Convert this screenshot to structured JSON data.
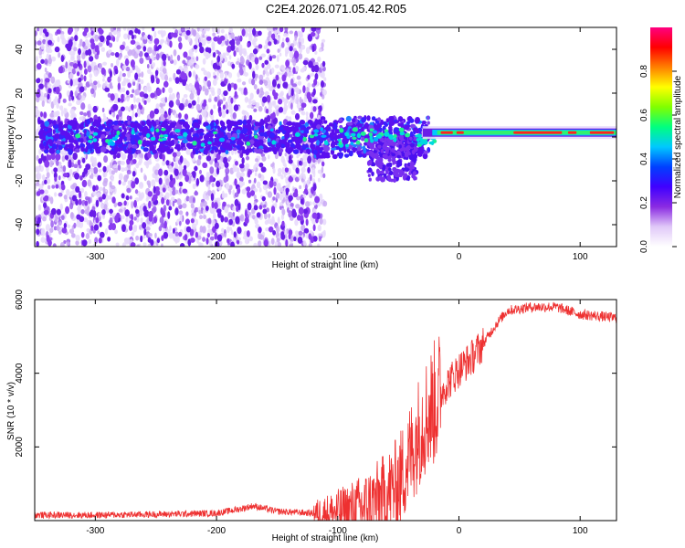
{
  "chart_data": [
    {
      "type": "heatmap",
      "title": "C2E4.2026.071.05.42.R05",
      "xlabel": "Height of straight line (km)",
      "ylabel": "Frequency (Hz)",
      "xlim": [
        -350,
        130
      ],
      "ylim": [
        -50,
        50
      ],
      "xticks": [
        -300,
        -200,
        -100,
        0,
        100
      ],
      "xtick_labels": [
        "-300",
        "-200",
        "-100",
        "0",
        "100"
      ],
      "yticks": [
        -40,
        -20,
        0,
        20,
        40
      ],
      "ytick_labels": [
        "-40",
        "-20",
        "0",
        "20",
        "40"
      ],
      "colorbar": {
        "label": "Normalized spectral amplitude",
        "range": [
          0,
          1
        ],
        "ticks": [
          0.0,
          0.2,
          0.4,
          0.6,
          0.8
        ],
        "tick_labels": [
          "0.0",
          "0.2",
          "0.4",
          "0.6",
          "0.8"
        ],
        "colormap": [
          "#ffffff",
          "#e0c8f8",
          "#8a2be2",
          "#4000ff",
          "#0040ff",
          "#00c8ff",
          "#00ff80",
          "#80ff00",
          "#ffff00",
          "#ff8000",
          "#ff0000",
          "#ff0080"
        ]
      },
      "description_values": {
        "scatter_region_xlim": [
          -350,
          -110
        ],
        "core_band_center_hz": 0,
        "strong_band_xlim": [
          -30,
          130
        ],
        "strong_band_center_hz": 2
      }
    },
    {
      "type": "line",
      "xlabel": "Height of straight line (km)",
      "ylabel": "SNR (10 * v/v)",
      "xlim": [
        -350,
        130
      ],
      "ylim": [
        0,
        6000
      ],
      "xticks": [
        -300,
        -200,
        -100,
        0,
        100
      ],
      "xtick_labels": [
        "-300",
        "-200",
        "-100",
        "0",
        "100"
      ],
      "yticks": [
        2000,
        4000,
        6000
      ],
      "ytick_labels": [
        "2000",
        "4000",
        "6000"
      ],
      "series": [
        {
          "name": "SNR",
          "color": "#ee3030",
          "x": [
            -350,
            -300,
            -250,
            -200,
            -180,
            -170,
            -150,
            -120,
            -100,
            -80,
            -70,
            -60,
            -50,
            -40,
            -30,
            -20,
            -10,
            0,
            10,
            20,
            30,
            40,
            60,
            80,
            100,
            130
          ],
          "y": [
            150,
            150,
            170,
            200,
            320,
            400,
            250,
            200,
            230,
            350,
            500,
            700,
            1000,
            1800,
            2700,
            3200,
            3700,
            4100,
            4400,
            4800,
            5300,
            5700,
            5800,
            5800,
            5600,
            5500
          ]
        }
      ]
    }
  ]
}
